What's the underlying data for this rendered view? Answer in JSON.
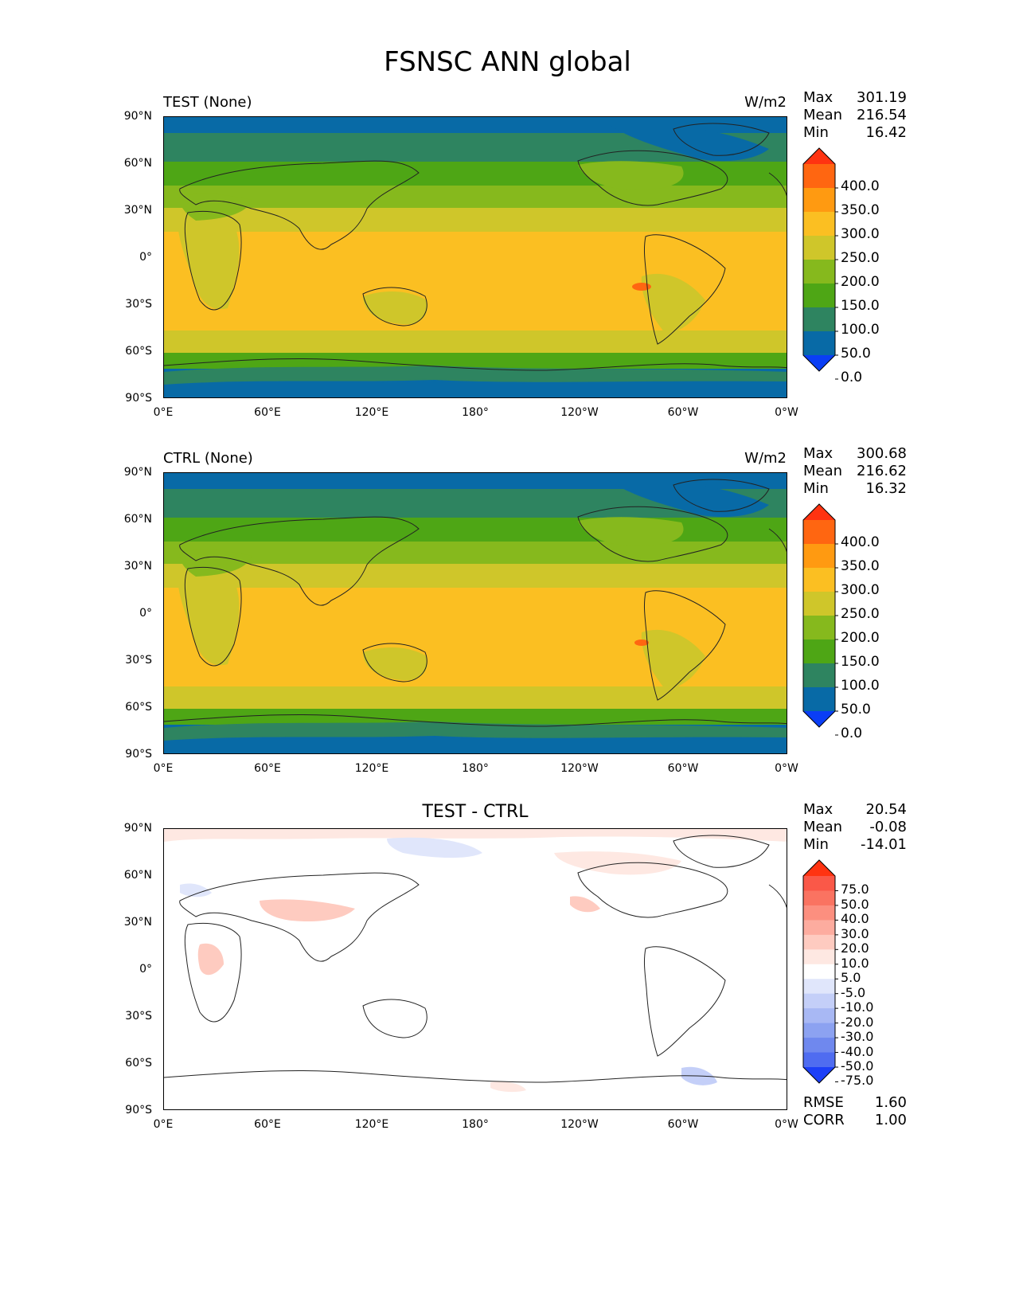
{
  "figure": {
    "title": "FSNSC ANN global"
  },
  "axes": {
    "yticks": [
      "90°N",
      "60°N",
      "30°N",
      "0°",
      "30°S",
      "60°S",
      "90°S"
    ],
    "xticks": [
      "0°E",
      "60°E",
      "120°E",
      "180°",
      "120°W",
      "60°W",
      "0°W"
    ]
  },
  "panels": {
    "test": {
      "title": "TEST (None)",
      "units": "W/m2",
      "stats": {
        "max_label": "Max",
        "max": "301.19",
        "mean_label": "Mean",
        "mean": "216.54",
        "min_label": "Min",
        "min": "16.42"
      }
    },
    "ctrl": {
      "title": "CTRL (None)",
      "units": "W/m2",
      "stats": {
        "max_label": "Max",
        "max": "300.68",
        "mean_label": "Mean",
        "mean": "216.62",
        "min_label": "Min",
        "min": "16.32"
      }
    },
    "diff": {
      "title": "TEST - CTRL",
      "stats": {
        "max_label": "Max",
        "max": "20.54",
        "mean_label": "Mean",
        "mean": "-0.08",
        "min_label": "Min",
        "min": "-14.01"
      },
      "metrics": {
        "rmse_label": "RMSE",
        "rmse": "1.60",
        "corr_label": "CORR",
        "corr": "1.00"
      }
    }
  },
  "colorbars": {
    "main": {
      "labels": [
        "400.0",
        "350.0",
        "300.0",
        "250.0",
        "200.0",
        "150.0",
        "100.0",
        "50.0",
        "0.0"
      ],
      "colors_top_to_bottom": [
        "#ff3311",
        "#ff6611",
        "#ff9a11",
        "#fbbf22",
        "#cfc62a",
        "#86b91d",
        "#4ea615",
        "#2e8460",
        "#086aa6",
        "#0a3ef5"
      ]
    },
    "diff": {
      "labels": [
        "75.0",
        "50.0",
        "40.0",
        "30.0",
        "20.0",
        "10.0",
        "5.0",
        "-5.0",
        "-10.0",
        "-20.0",
        "-30.0",
        "-40.0",
        "-50.0",
        "-75.0"
      ],
      "colors_top_to_bottom": [
        "#ff3311",
        "#fa5848",
        "#fa7361",
        "#fc8f7f",
        "#fdac9f",
        "#fecbc0",
        "#fee8e2",
        "#ffffff",
        "#e0e6fb",
        "#c4cff8",
        "#a8b8f4",
        "#8ca2f1",
        "#6f88ee",
        "#4f6cf0",
        "#1c3ff7"
      ]
    }
  }
}
